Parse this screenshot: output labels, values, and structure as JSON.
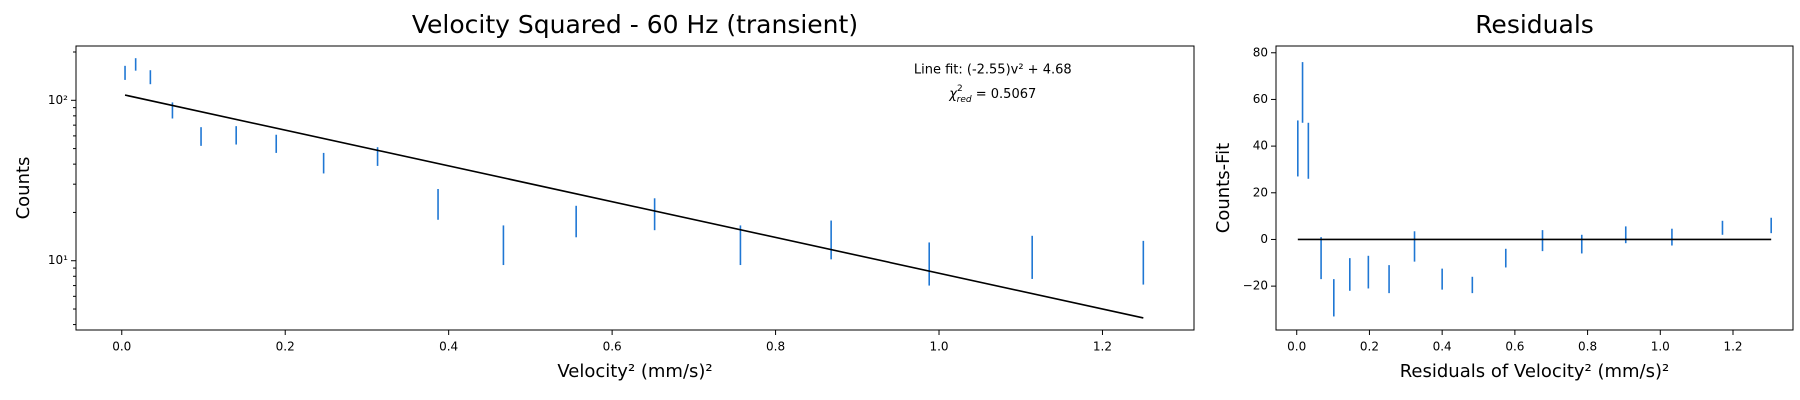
{
  "chart_data": [
    {
      "type": "errorbar",
      "title": "Velocity Squared - 60 Hz (transient)",
      "xlabel": "Velocity² (mm/s)²",
      "ylabel": "Counts",
      "x": [
        0.004,
        0.017,
        0.035,
        0.062,
        0.097,
        0.14,
        0.189,
        0.247,
        0.313,
        0.387,
        0.467,
        0.556,
        0.652,
        0.757,
        0.868,
        0.988,
        1.114,
        1.25
      ],
      "values": [
        149,
        168,
        140,
        87,
        60,
        61,
        54,
        41,
        45,
        23,
        13,
        18,
        20,
        13,
        14,
        10,
        11,
        10.2
      ],
      "errors": [
        15,
        15,
        14,
        10,
        8,
        8,
        7,
        6,
        6,
        5,
        3.6,
        4,
        4.5,
        3.6,
        3.8,
        3,
        3.3,
        3.1
      ],
      "color": "#1f77d4",
      "fit": {
        "x": [
          0.004,
          1.25
        ],
        "values": [
          107.8,
          4.4
        ],
        "color": "#000000"
      },
      "annotation": "Line fit: (-2.55)v² + 4.68",
      "annotation2": {
        "symbol": "χ",
        "sup": "2",
        "sub": "red",
        "text": " = 0.5067"
      },
      "xlim": [
        -0.056,
        1.312
      ],
      "ylim": [
        3.7,
        218
      ],
      "ylog": true,
      "xticks": [
        {
          "value": 0,
          "label": "0.0"
        },
        0.2,
        0.4,
        0.6,
        0.8,
        {
          "value": 1,
          "label": "1.0"
        },
        1.2
      ],
      "yticks": [
        {
          "value": 10,
          "label": "10¹"
        },
        {
          "value": 100,
          "label": "10²"
        }
      ],
      "yminorticks": [
        4,
        5,
        6,
        7,
        8,
        9,
        20,
        30,
        40,
        50,
        60,
        70,
        80,
        90,
        200
      ]
    },
    {
      "type": "errorbar",
      "title": "Residuals",
      "xlabel": "Residuals of Velocity² (mm/s)²",
      "ylabel": "Counts-Fit",
      "x": [
        0.003,
        0.016,
        0.032,
        0.067,
        0.102,
        0.146,
        0.197,
        0.254,
        0.324,
        0.4,
        0.483,
        0.575,
        0.676,
        0.784,
        0.905,
        1.032,
        1.171,
        1.305
      ],
      "values": [
        39,
        63,
        38,
        -8,
        -25,
        -15,
        -14,
        -17,
        -3,
        -17,
        -19.5,
        -8,
        -0.5,
        -2,
        2,
        1,
        5,
        6
      ],
      "errors": [
        12,
        13,
        12,
        9,
        8,
        7,
        7,
        6,
        6.5,
        4.5,
        3.5,
        4,
        4.5,
        4,
        3.6,
        3.6,
        3,
        3.3
      ],
      "color": "#1f77d4",
      "fit": {
        "x": [
          0.003,
          1.305
        ],
        "values": [
          0,
          0
        ],
        "color": "#000000"
      },
      "xlim": [
        -0.057,
        1.365
      ],
      "ylim": [
        -38.8,
        82.9
      ],
      "xticks": [
        {
          "value": 0,
          "label": "0.0"
        },
        0.2,
        0.4,
        0.6,
        0.8,
        {
          "value": 1,
          "label": "1.0"
        },
        1.2
      ],
      "yticks": [
        {
          "value": -20,
          "label": "−20"
        },
        0,
        20,
        40,
        60,
        80
      ]
    }
  ]
}
